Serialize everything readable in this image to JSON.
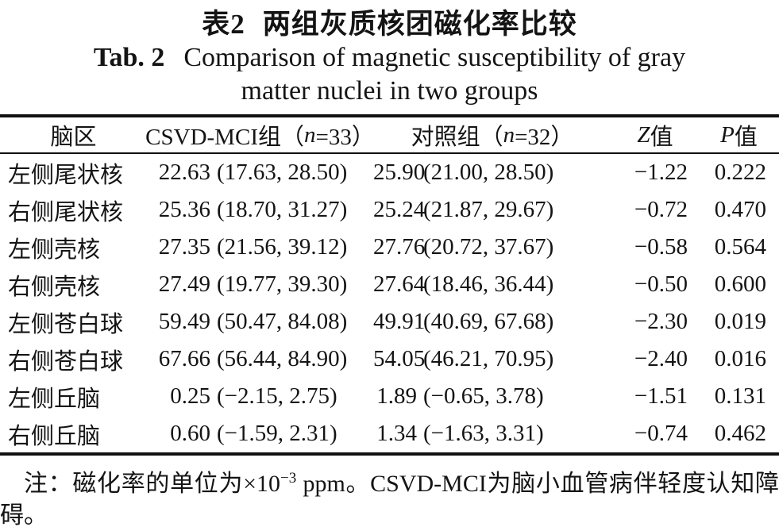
{
  "page": {
    "title_zh": {
      "label": "表2",
      "text": "两组灰质核团磁化率比较"
    },
    "title_en": {
      "label": "Tab. 2",
      "line1": "Comparison of magnetic susceptibility of gray",
      "line2": "matter nuclei in two groups"
    }
  },
  "table": {
    "header": {
      "region": "脑区",
      "group1": {
        "pre": "CSVD-MCI组（",
        "n": "n",
        "post": "=33）"
      },
      "group2": {
        "pre": "对照组（",
        "n": "n",
        "post": "=32）"
      },
      "z": {
        "italic": "Z",
        "rest": "值"
      },
      "p": {
        "italic": "P",
        "rest": "值"
      }
    },
    "rows": [
      {
        "region": "左侧尾状核",
        "g1_med": "22.63",
        "g1_range": "(17.63, 28.50)",
        "g2_med": "25.90",
        "g2_range": "(21.00, 28.50)",
        "z": "−1.22",
        "p": "0.222"
      },
      {
        "region": "右侧尾状核",
        "g1_med": "25.36",
        "g1_range": "(18.70, 31.27)",
        "g2_med": "25.24",
        "g2_range": "(21.87, 29.67)",
        "z": "−0.72",
        "p": "0.470"
      },
      {
        "region": "左侧壳核",
        "g1_med": "27.35",
        "g1_range": "(21.56, 39.12)",
        "g2_med": "27.76",
        "g2_range": "(20.72, 37.67)",
        "z": "−0.58",
        "p": "0.564"
      },
      {
        "region": "右侧壳核",
        "g1_med": "27.49",
        "g1_range": "(19.77, 39.30)",
        "g2_med": "27.64",
        "g2_range": "(18.46, 36.44)",
        "z": "−0.50",
        "p": "0.600"
      },
      {
        "region": "左侧苍白球",
        "g1_med": "59.49",
        "g1_range": "(50.47, 84.08)",
        "g2_med": "49.91",
        "g2_range": "(40.69, 67.68)",
        "z": "−2.30",
        "p": "0.019"
      },
      {
        "region": "右侧苍白球",
        "g1_med": "67.66",
        "g1_range": "(56.44, 84.90)",
        "g2_med": "54.05",
        "g2_range": "(46.21, 70.95)",
        "z": "−2.40",
        "p": "0.016"
      },
      {
        "region": "左侧丘脑",
        "g1_med": "0.25",
        "g1_range": "(−2.15, 2.75)",
        "g2_med": "1.89",
        "g2_range": "(−0.65, 3.78)",
        "z": "−1.51",
        "p": "0.131"
      },
      {
        "region": "右侧丘脑",
        "g1_med": "0.60",
        "g1_range": "(−1.59, 2.31)",
        "g2_med": "1.34",
        "g2_range": "(−1.63, 3.31)",
        "z": "−0.74",
        "p": "0.462"
      }
    ],
    "note": {
      "pre": "注：磁化率的单位为×10",
      "sup": "−3",
      "post": " ppm。CSVD-MCI为脑小血管病伴轻度认知障碍。"
    }
  }
}
